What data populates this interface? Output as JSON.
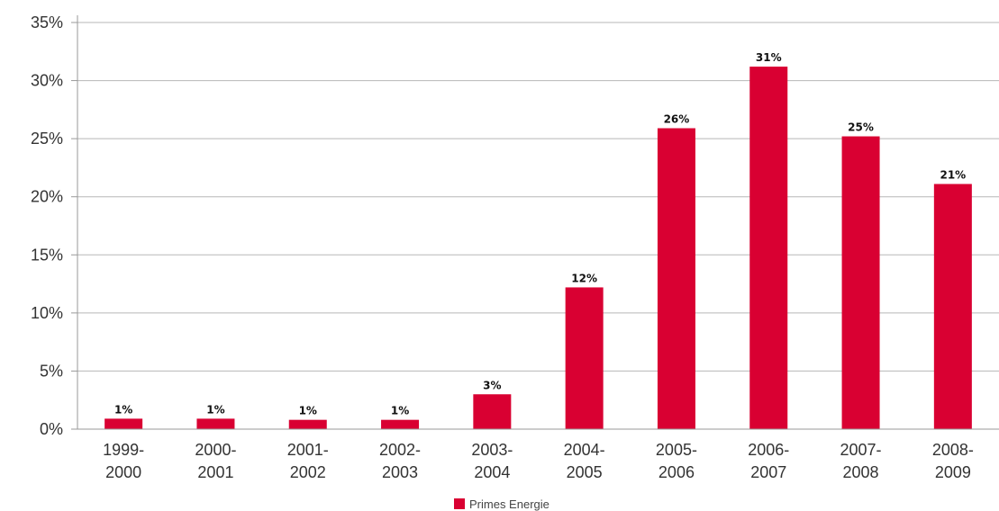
{
  "chart_data": {
    "type": "bar",
    "categories": [
      [
        "1999-",
        "2000"
      ],
      [
        "2000-",
        "2001"
      ],
      [
        "2001-",
        "2002"
      ],
      [
        "2002-",
        "2003"
      ],
      [
        "2003-",
        "2004"
      ],
      [
        "2004-",
        "2005"
      ],
      [
        "2005-",
        "2006"
      ],
      [
        "2006-",
        "2007"
      ],
      [
        "2007-",
        "2008"
      ],
      [
        "2008-",
        "2009"
      ]
    ],
    "series": [
      {
        "name": "Primes Energie",
        "values": [
          0.9,
          0.9,
          0.8,
          0.8,
          3.0,
          12.2,
          25.9,
          31.2,
          25.2,
          21.1
        ],
        "labels": [
          "1%",
          "1%",
          "1%",
          "1%",
          "3%",
          "12%",
          "26%",
          "31%",
          "25%",
          "21%"
        ],
        "color": "#d90032"
      }
    ],
    "yticks": [
      0,
      5,
      10,
      15,
      20,
      25,
      30,
      35
    ],
    "ytick_labels": [
      "0%",
      "5%",
      "10%",
      "15%",
      "20%",
      "25%",
      "30%",
      "35%"
    ],
    "ylim": [
      0,
      35
    ],
    "grid": true,
    "legend_position": "bottom-center",
    "title": "",
    "xlabel": "",
    "ylabel": ""
  }
}
